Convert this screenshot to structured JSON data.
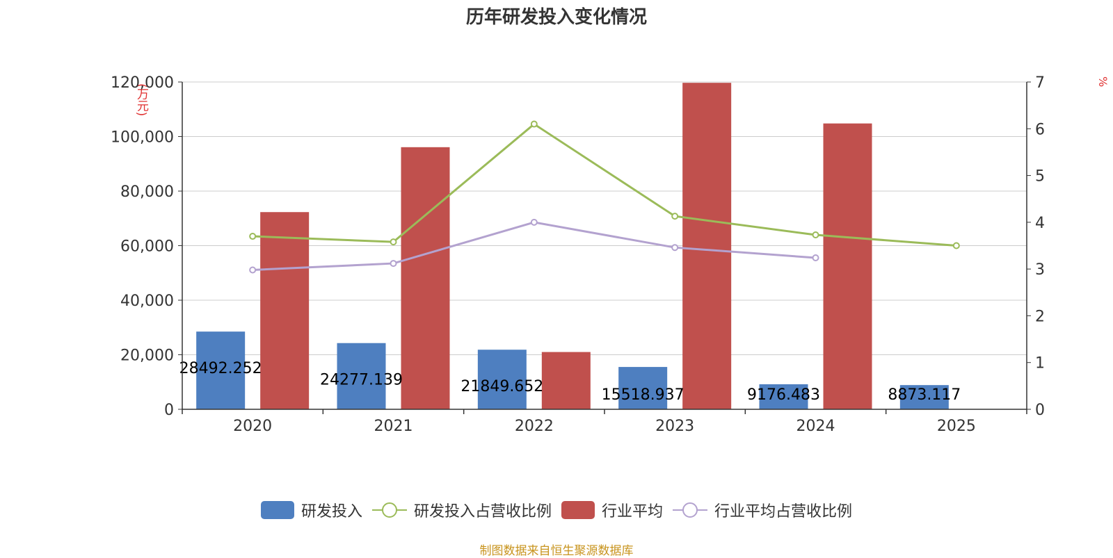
{
  "title": "历年研发投入变化情况",
  "left_axis_unit": "(万元)",
  "right_axis_unit": "%",
  "source_note": "制图数据来自恒生聚源数据库",
  "colors": {
    "rd_bar": "#4e7fc0",
    "industry_bar": "#c0504d",
    "rd_ratio_line": "#9bbb59",
    "industry_ratio_line": "#b3a2cf",
    "axis": "#333333",
    "grid": "#cccccc",
    "unit_label": "#e03030",
    "source": "#c8941e"
  },
  "legend": [
    {
      "label": "研发投入",
      "kind": "bar",
      "color": "#4e7fc0"
    },
    {
      "label": "研发投入占营收比例",
      "kind": "line",
      "color": "#9bbb59"
    },
    {
      "label": "行业平均",
      "kind": "bar",
      "color": "#c0504d"
    },
    {
      "label": "行业平均占营收比例",
      "kind": "line",
      "color": "#b3a2cf"
    }
  ],
  "chart_data": {
    "type": "bar",
    "title": "历年研发投入变化情况",
    "categories": [
      "2020",
      "2021",
      "2022",
      "2023",
      "2024",
      "2025"
    ],
    "y_left": {
      "label": "(万元)",
      "ylim": [
        0,
        120000
      ],
      "ticks": [
        "0",
        "20,000",
        "40,000",
        "60,000",
        "80,000",
        "100,000",
        "120,000"
      ]
    },
    "y_right": {
      "label": "%",
      "ylim": [
        0,
        7
      ],
      "ticks": [
        "0",
        "1",
        "2",
        "3",
        "4",
        "5",
        "6",
        "7"
      ]
    },
    "grid": true,
    "legend_position": "bottom",
    "series": [
      {
        "name": "研发投入",
        "type": "bar",
        "axis": "left",
        "values": [
          28492.252,
          24277.139,
          21849.652,
          15518.937,
          9176.483,
          8873.117
        ],
        "data_labels": [
          "28492.252",
          "24277.139",
          "21849.652",
          "15518.937",
          "9176.483",
          "8873.117"
        ]
      },
      {
        "name": "行业平均",
        "type": "bar",
        "axis": "left",
        "values": [
          72300,
          96100,
          21000,
          119700,
          104800,
          null
        ]
      },
      {
        "name": "研发投入占营收比例",
        "type": "line",
        "axis": "right",
        "values": [
          3.7,
          3.58,
          6.1,
          4.13,
          3.73,
          3.5
        ]
      },
      {
        "name": "行业平均占营收比例",
        "type": "line",
        "axis": "right",
        "values": [
          2.98,
          3.12,
          4.0,
          3.46,
          3.24,
          null
        ]
      }
    ]
  }
}
